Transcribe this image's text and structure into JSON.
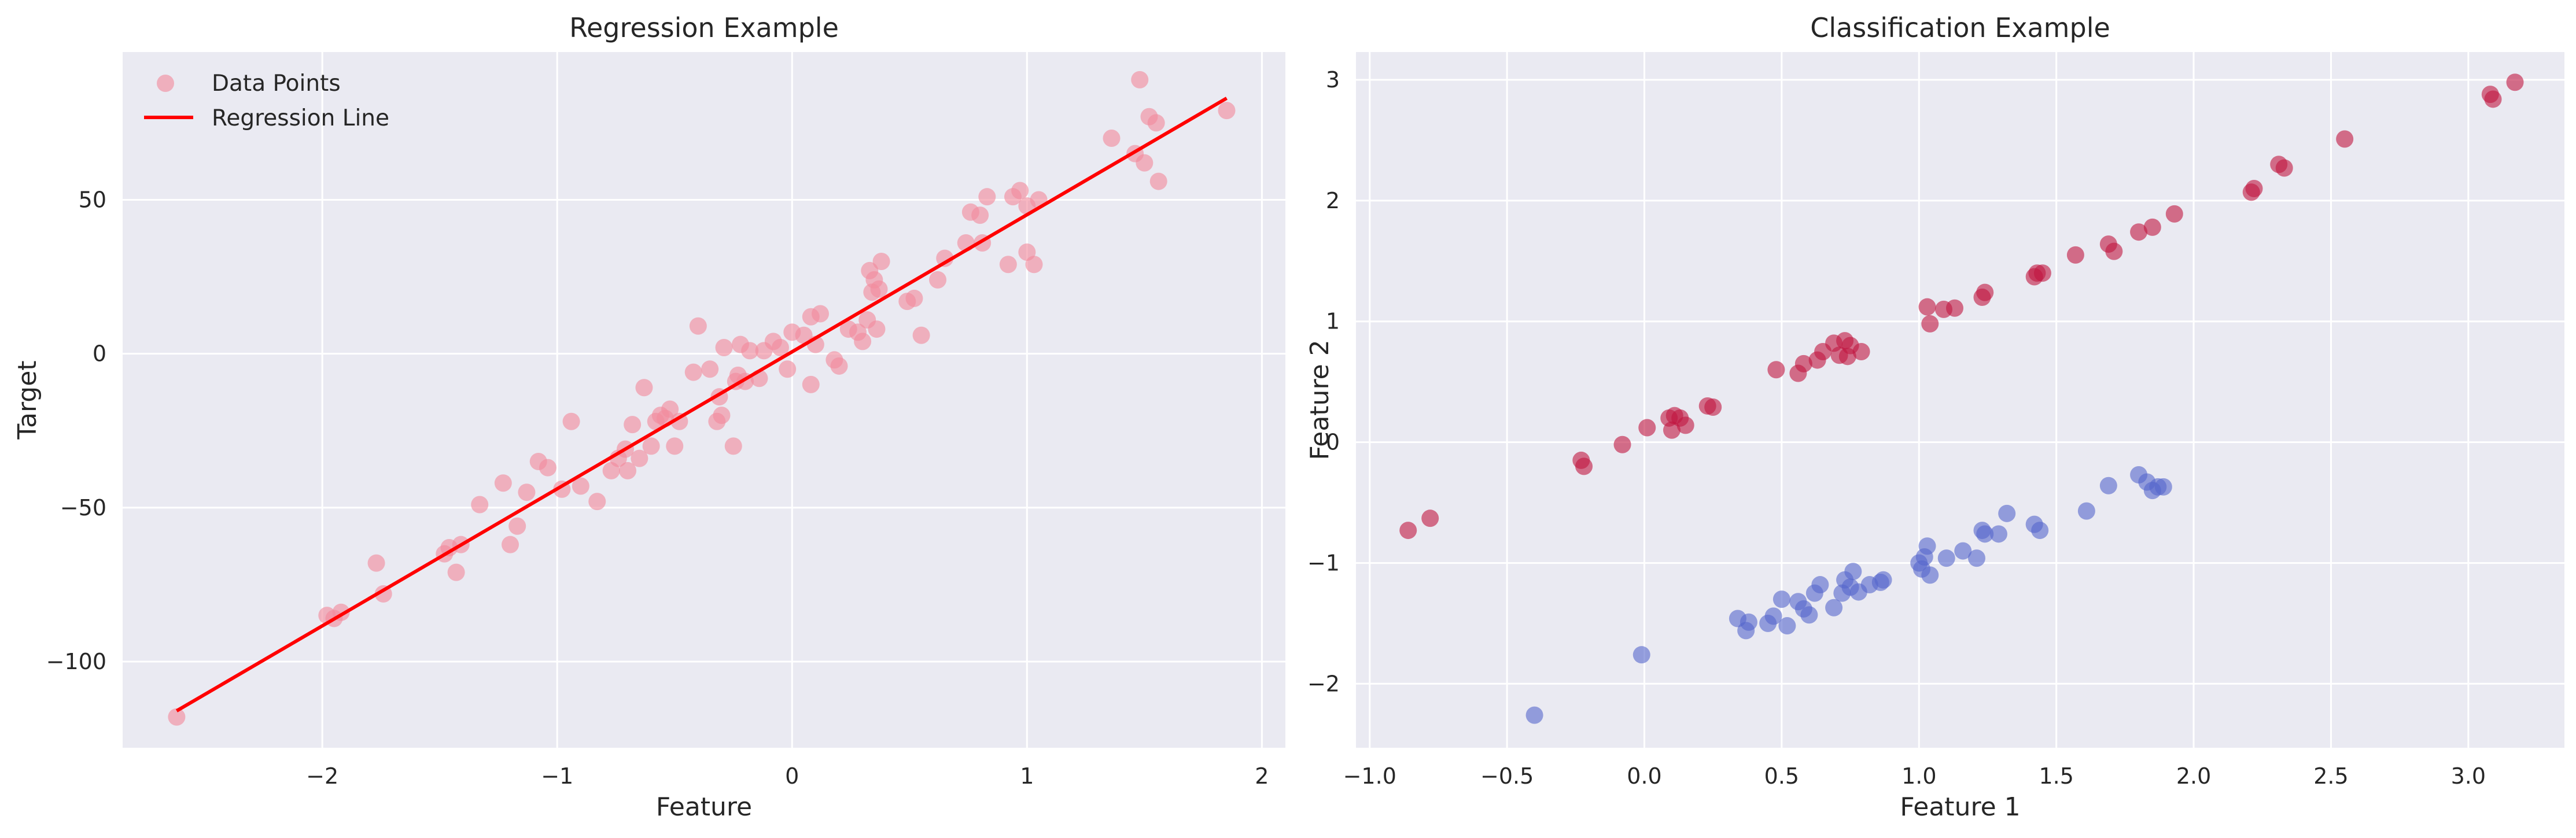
{
  "colors": {
    "background": "#eaeaf2",
    "grid": "#ffffff",
    "regression_points": "#f28b9d",
    "regression_line": "#ff0000",
    "class_red": "#c0163f",
    "class_blue": "#5566cc"
  },
  "chart_data": [
    {
      "type": "scatter",
      "title": "Regression Example",
      "xlabel": "Feature",
      "ylabel": "Target",
      "xlim": [
        -2.85,
        2.1
      ],
      "ylim": [
        -128,
        98
      ],
      "xticks": [
        -2,
        -1,
        0,
        1,
        2
      ],
      "xtick_labels": [
        "−2",
        "−1",
        "0",
        "1",
        "2"
      ],
      "yticks": [
        -100,
        -50,
        0,
        50
      ],
      "ytick_labels": [
        "−100",
        "−50",
        "0",
        "50"
      ],
      "grid": true,
      "legend": {
        "placement": "top-left",
        "entries": [
          {
            "label": "Data Points",
            "kind": "marker"
          },
          {
            "label": "Regression Line",
            "kind": "line"
          }
        ]
      },
      "series": [
        {
          "name": "Data Points",
          "kind": "scatter",
          "points": [
            [
              -2.62,
              -118
            ],
            [
              -1.98,
              -85
            ],
            [
              -1.95,
              -86
            ],
            [
              -1.92,
              -84
            ],
            [
              -1.77,
              -68
            ],
            [
              -1.74,
              -78
            ],
            [
              -1.48,
              -65
            ],
            [
              -1.46,
              -63
            ],
            [
              -1.43,
              -71
            ],
            [
              -1.41,
              -62
            ],
            [
              -1.33,
              -49
            ],
            [
              -1.23,
              -42
            ],
            [
              -1.2,
              -62
            ],
            [
              -1.17,
              -56
            ],
            [
              -1.13,
              -45
            ],
            [
              -1.08,
              -35
            ],
            [
              -1.04,
              -37
            ],
            [
              -0.98,
              -44
            ],
            [
              -0.94,
              -22
            ],
            [
              -0.9,
              -43
            ],
            [
              -0.83,
              -48
            ],
            [
              -0.77,
              -38
            ],
            [
              -0.74,
              -34
            ],
            [
              -0.71,
              -31
            ],
            [
              -0.7,
              -38
            ],
            [
              -0.68,
              -23
            ],
            [
              -0.65,
              -34
            ],
            [
              -0.63,
              -11
            ],
            [
              -0.6,
              -30
            ],
            [
              -0.58,
              -22
            ],
            [
              -0.56,
              -20
            ],
            [
              -0.54,
              -21
            ],
            [
              -0.52,
              -18
            ],
            [
              -0.5,
              -30
            ],
            [
              -0.48,
              -22
            ],
            [
              -0.42,
              -6
            ],
            [
              -0.4,
              9
            ],
            [
              -0.35,
              -5
            ],
            [
              -0.32,
              -22
            ],
            [
              -0.31,
              -14
            ],
            [
              -0.3,
              -20
            ],
            [
              -0.29,
              2
            ],
            [
              -0.25,
              -30
            ],
            [
              -0.24,
              -9
            ],
            [
              -0.23,
              -7
            ],
            [
              -0.22,
              3
            ],
            [
              -0.2,
              -9
            ],
            [
              -0.18,
              1
            ],
            [
              -0.14,
              -8
            ],
            [
              -0.12,
              1
            ],
            [
              -0.08,
              4
            ],
            [
              -0.05,
              2
            ],
            [
              -0.02,
              -5
            ],
            [
              0.0,
              7
            ],
            [
              0.05,
              6
            ],
            [
              0.08,
              -10
            ],
            [
              0.08,
              12
            ],
            [
              0.1,
              3
            ],
            [
              0.12,
              13
            ],
            [
              0.18,
              -2
            ],
            [
              0.2,
              -4
            ],
            [
              0.24,
              8
            ],
            [
              0.28,
              7
            ],
            [
              0.3,
              4
            ],
            [
              0.32,
              11
            ],
            [
              0.33,
              27
            ],
            [
              0.34,
              20
            ],
            [
              0.35,
              24
            ],
            [
              0.36,
              8
            ],
            [
              0.37,
              21
            ],
            [
              0.38,
              30
            ],
            [
              0.49,
              17
            ],
            [
              0.52,
              18
            ],
            [
              0.55,
              6
            ],
            [
              0.62,
              24
            ],
            [
              0.65,
              31
            ],
            [
              0.74,
              36
            ],
            [
              0.76,
              46
            ],
            [
              0.8,
              45
            ],
            [
              0.81,
              36
            ],
            [
              0.83,
              51
            ],
            [
              0.92,
              29
            ],
            [
              0.94,
              51
            ],
            [
              0.97,
              53
            ],
            [
              1.0,
              48
            ],
            [
              1.0,
              33
            ],
            [
              1.03,
              29
            ],
            [
              1.05,
              50
            ],
            [
              1.36,
              70
            ],
            [
              1.46,
              65
            ],
            [
              1.48,
              89
            ],
            [
              1.5,
              62
            ],
            [
              1.52,
              77
            ],
            [
              1.55,
              75
            ],
            [
              1.56,
              56
            ],
            [
              1.85,
              79
            ]
          ]
        },
        {
          "name": "Regression Line",
          "kind": "line",
          "points": [
            [
              -2.62,
              -116
            ],
            [
              1.85,
              83
            ]
          ]
        }
      ]
    },
    {
      "type": "scatter",
      "title": "Classification Example",
      "xlabel": "Feature 1",
      "ylabel": "Feature 2",
      "xlim": [
        -1.05,
        3.35
      ],
      "ylim": [
        -2.53,
        3.23
      ],
      "xticks": [
        -1.0,
        -0.5,
        0.0,
        0.5,
        1.0,
        1.5,
        2.0,
        2.5,
        3.0
      ],
      "xtick_labels": [
        "−1.0",
        "−0.5",
        "0.0",
        "0.5",
        "1.0",
        "1.5",
        "2.0",
        "2.5",
        "3.0"
      ],
      "yticks": [
        -2,
        -1,
        0,
        1,
        2,
        3
      ],
      "ytick_labels": [
        "−2",
        "−1",
        "0",
        "1",
        "2",
        "3"
      ],
      "grid": true,
      "series": [
        {
          "kind": "scatter",
          "class": 1,
          "color_key": "class_red",
          "points": [
            [
              -0.86,
              -0.73
            ],
            [
              -0.78,
              -0.63
            ],
            [
              -0.23,
              -0.15
            ],
            [
              -0.22,
              -0.2
            ],
            [
              -0.08,
              -0.02
            ],
            [
              0.01,
              0.12
            ],
            [
              0.09,
              0.2
            ],
            [
              0.1,
              0.1
            ],
            [
              0.11,
              0.22
            ],
            [
              0.13,
              0.2
            ],
            [
              0.15,
              0.14
            ],
            [
              0.23,
              0.3
            ],
            [
              0.25,
              0.29
            ],
            [
              0.48,
              0.6
            ],
            [
              0.56,
              0.57
            ],
            [
              0.58,
              0.65
            ],
            [
              0.63,
              0.68
            ],
            [
              0.65,
              0.75
            ],
            [
              0.69,
              0.82
            ],
            [
              0.71,
              0.72
            ],
            [
              0.73,
              0.84
            ],
            [
              0.74,
              0.71
            ],
            [
              0.75,
              0.8
            ],
            [
              0.79,
              0.75
            ],
            [
              1.03,
              1.12
            ],
            [
              1.04,
              0.98
            ],
            [
              1.09,
              1.1
            ],
            [
              1.13,
              1.11
            ],
            [
              1.23,
              1.2
            ],
            [
              1.24,
              1.24
            ],
            [
              1.42,
              1.37
            ],
            [
              1.43,
              1.4
            ],
            [
              1.45,
              1.4
            ],
            [
              1.57,
              1.55
            ],
            [
              1.69,
              1.64
            ],
            [
              1.71,
              1.58
            ],
            [
              1.8,
              1.74
            ],
            [
              1.85,
              1.78
            ],
            [
              1.93,
              1.89
            ],
            [
              2.21,
              2.07
            ],
            [
              2.22,
              2.1
            ],
            [
              2.31,
              2.3
            ],
            [
              2.33,
              2.27
            ],
            [
              2.55,
              2.51
            ],
            [
              3.08,
              2.88
            ],
            [
              3.09,
              2.84
            ],
            [
              3.17,
              2.98
            ]
          ]
        },
        {
          "kind": "scatter",
          "class": 0,
          "color_key": "class_blue",
          "points": [
            [
              -0.4,
              -2.26
            ],
            [
              -0.01,
              -1.76
            ],
            [
              0.34,
              -1.46
            ],
            [
              0.37,
              -1.56
            ],
            [
              0.38,
              -1.49
            ],
            [
              0.45,
              -1.5
            ],
            [
              0.47,
              -1.44
            ],
            [
              0.5,
              -1.3
            ],
            [
              0.52,
              -1.52
            ],
            [
              0.56,
              -1.32
            ],
            [
              0.58,
              -1.38
            ],
            [
              0.6,
              -1.43
            ],
            [
              0.62,
              -1.25
            ],
            [
              0.64,
              -1.18
            ],
            [
              0.69,
              -1.37
            ],
            [
              0.72,
              -1.25
            ],
            [
              0.73,
              -1.14
            ],
            [
              0.75,
              -1.2
            ],
            [
              0.76,
              -1.07
            ],
            [
              0.78,
              -1.24
            ],
            [
              0.82,
              -1.18
            ],
            [
              0.86,
              -1.16
            ],
            [
              0.87,
              -1.14
            ],
            [
              1.0,
              -1.0
            ],
            [
              1.01,
              -1.05
            ],
            [
              1.02,
              -0.95
            ],
            [
              1.03,
              -0.86
            ],
            [
              1.04,
              -1.1
            ],
            [
              1.1,
              -0.96
            ],
            [
              1.16,
              -0.9
            ],
            [
              1.21,
              -0.96
            ],
            [
              1.23,
              -0.73
            ],
            [
              1.24,
              -0.76
            ],
            [
              1.29,
              -0.76
            ],
            [
              1.32,
              -0.59
            ],
            [
              1.42,
              -0.68
            ],
            [
              1.44,
              -0.73
            ],
            [
              1.61,
              -0.57
            ],
            [
              1.69,
              -0.36
            ],
            [
              1.8,
              -0.27
            ],
            [
              1.83,
              -0.33
            ],
            [
              1.85,
              -0.4
            ],
            [
              1.87,
              -0.37
            ],
            [
              1.89,
              -0.37
            ]
          ]
        }
      ]
    }
  ]
}
